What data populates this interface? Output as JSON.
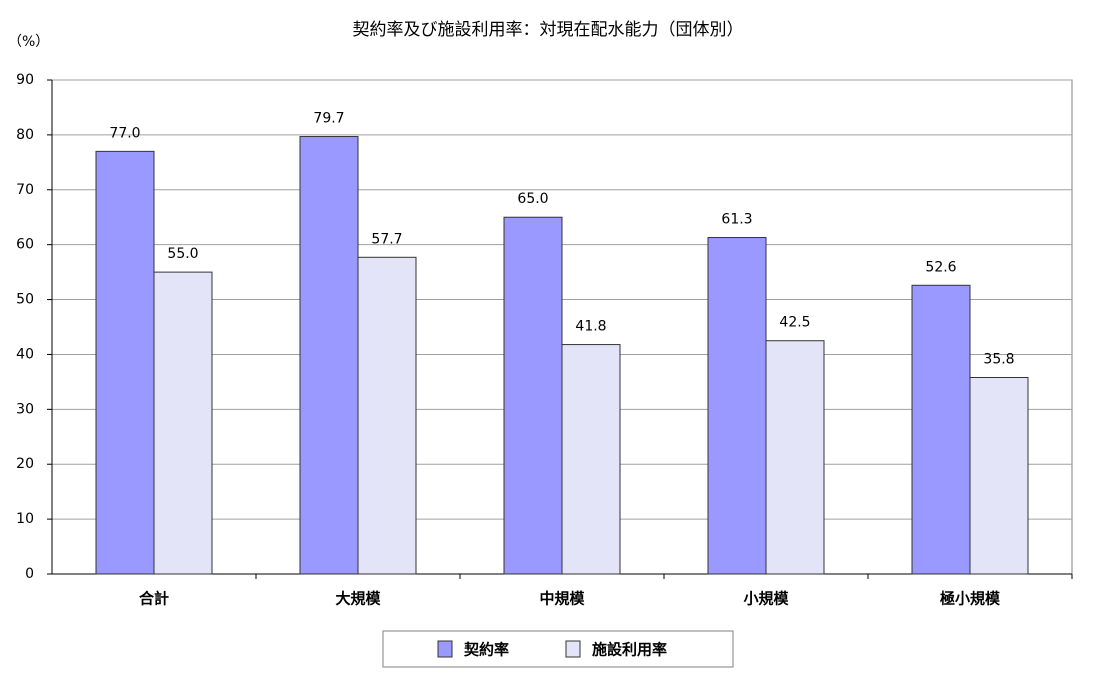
{
  "chart_data": {
    "type": "bar",
    "title": "契約率及び施設利用率：対現在配水能力（団体別）",
    "y_label": "（%）",
    "categories": [
      "合計",
      "大規模",
      "中規模",
      "小規模",
      "極小規模"
    ],
    "series": [
      {
        "name": "契約率",
        "color": "#9999ff",
        "values": [
          77.0,
          79.7,
          65.0,
          61.3,
          52.6
        ],
        "value_labels": [
          "77.0",
          "79.7",
          "65.0",
          "61.3",
          "52.6"
        ]
      },
      {
        "name": "施設利用率",
        "color": "#e4e4f8",
        "values": [
          55.0,
          57.7,
          41.8,
          42.5,
          35.8
        ],
        "value_labels": [
          "55.0",
          "57.7",
          "41.8",
          "42.5",
          "35.8"
        ]
      }
    ],
    "ylim": [
      0,
      90
    ],
    "yticks": [
      0,
      10,
      20,
      30,
      40,
      50,
      60,
      70,
      80,
      90
    ],
    "grid": true,
    "legend": "bottom"
  }
}
